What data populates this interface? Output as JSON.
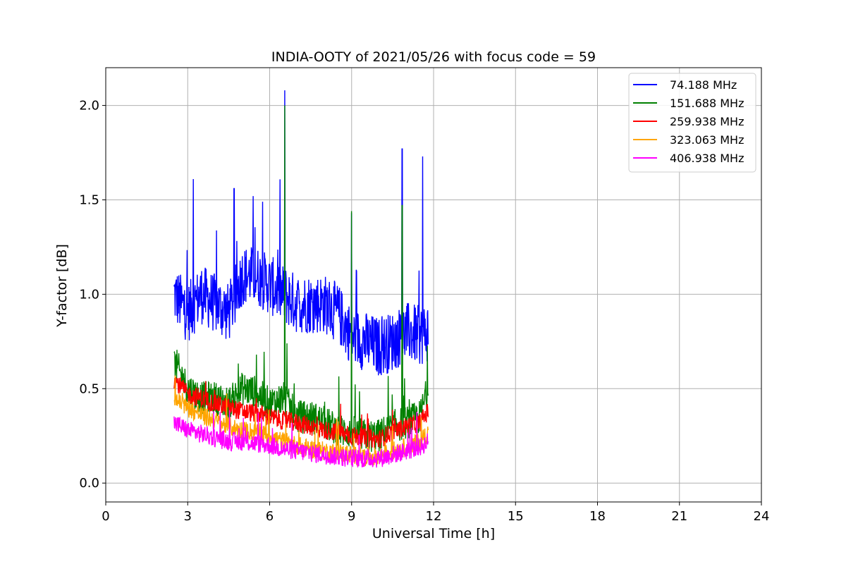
{
  "chart_data": {
    "type": "line",
    "title": "INDIA-OOTY of 2021/05/26 with focus code = 59",
    "xlabel": "Universal Time [h]",
    "ylabel": "Y-factor [dB]",
    "xlim": [
      0,
      24
    ],
    "ylim": [
      -0.1,
      2.2
    ],
    "xticks": [
      0,
      3,
      6,
      9,
      12,
      15,
      18,
      21,
      24
    ],
    "xtick_labels": [
      "0",
      "3",
      "6",
      "9",
      "12",
      "15",
      "18",
      "21",
      "24"
    ],
    "yticks": [
      0.0,
      0.5,
      1.0,
      1.5,
      2.0
    ],
    "ytick_labels": [
      "0.0",
      "0.5",
      "1.0",
      "1.5",
      "2.0"
    ],
    "grid": true,
    "legend_position": "top-right",
    "x": [
      2.5,
      3.0,
      3.5,
      4.0,
      4.5,
      5.0,
      5.5,
      6.0,
      6.5,
      7.0,
      7.5,
      8.0,
      8.5,
      9.0,
      9.5,
      10.0,
      10.5,
      11.0,
      11.5,
      11.8
    ],
    "series": [
      {
        "name": " 74.188 MHz",
        "color": "#0000ff",
        "values": [
          1.0,
          0.9,
          1.0,
          0.95,
          0.9,
          1.1,
          1.1,
          1.05,
          1.0,
          0.95,
          0.95,
          0.95,
          0.9,
          0.78,
          0.75,
          0.72,
          0.75,
          0.8,
          0.78,
          0.8
        ],
        "spikes": [
          [
            3.2,
            1.61
          ],
          [
            4.7,
            1.56
          ],
          [
            5.4,
            1.52
          ],
          [
            6.55,
            2.08
          ],
          [
            9.0,
            1.43
          ],
          [
            10.85,
            1.77
          ],
          [
            11.6,
            1.73
          ]
        ]
      },
      {
        "name": "151.688 MHz",
        "color": "#008000",
        "values": [
          0.65,
          0.5,
          0.45,
          0.45,
          0.42,
          0.5,
          0.48,
          0.42,
          0.45,
          0.35,
          0.35,
          0.32,
          0.28,
          0.27,
          0.25,
          0.25,
          0.3,
          0.32,
          0.35,
          0.5
        ],
        "spikes": [
          [
            6.55,
            2.0
          ],
          [
            9.0,
            1.44
          ],
          [
            10.85,
            1.47
          ]
        ]
      },
      {
        "name": "259.938 MHz",
        "color": "#ff0000",
        "values": [
          0.55,
          0.47,
          0.45,
          0.42,
          0.4,
          0.38,
          0.37,
          0.35,
          0.33,
          0.32,
          0.3,
          0.28,
          0.27,
          0.25,
          0.24,
          0.23,
          0.27,
          0.3,
          0.32,
          0.38
        ],
        "spikes": []
      },
      {
        "name": "323.063 MHz",
        "color": "#ffa500",
        "values": [
          0.45,
          0.4,
          0.36,
          0.33,
          0.3,
          0.28,
          0.27,
          0.25,
          0.22,
          0.2,
          0.18,
          0.17,
          0.16,
          0.15,
          0.14,
          0.14,
          0.17,
          0.19,
          0.22,
          0.27
        ],
        "spikes": []
      },
      {
        "name": "406.938 MHz",
        "color": "#ff00ff",
        "values": [
          0.32,
          0.28,
          0.26,
          0.24,
          0.22,
          0.22,
          0.21,
          0.2,
          0.18,
          0.17,
          0.16,
          0.15,
          0.14,
          0.13,
          0.13,
          0.13,
          0.15,
          0.17,
          0.19,
          0.22
        ],
        "spikes": []
      }
    ]
  }
}
